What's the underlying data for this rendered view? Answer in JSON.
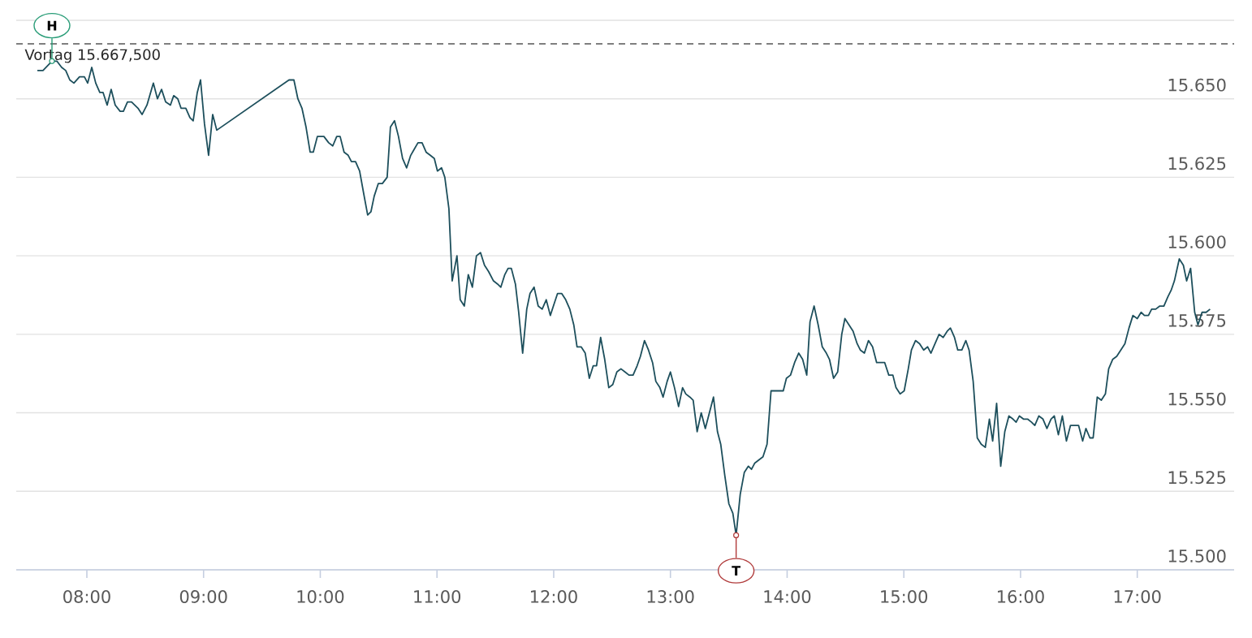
{
  "chart_data": {
    "type": "line",
    "x": [
      7.576,
      7.624,
      7.701,
      7.743,
      7.784,
      7.819,
      7.854,
      7.889,
      7.937,
      7.979,
      8.007,
      8.042,
      8.076,
      8.111,
      8.139,
      8.174,
      8.208,
      8.243,
      8.285,
      8.313,
      8.348,
      8.383,
      8.438,
      8.473,
      8.515,
      8.57,
      8.605,
      8.64,
      8.675,
      8.716,
      8.744,
      8.779,
      8.807,
      8.848,
      8.883,
      8.911,
      8.946,
      8.974,
      9.008,
      9.043,
      9.078,
      9.113,
      9.732,
      9.774,
      9.808,
      9.843,
      9.878,
      9.913,
      9.94,
      9.975,
      10.031,
      10.072,
      10.107,
      10.141,
      10.17,
      10.204,
      10.239,
      10.267,
      10.302,
      10.337,
      10.371,
      10.406,
      10.434,
      10.462,
      10.497,
      10.532,
      10.573,
      10.601,
      10.636,
      10.67,
      10.705,
      10.74,
      10.775,
      10.837,
      10.872,
      10.907,
      10.942,
      10.977,
      11.004,
      11.039,
      11.067,
      11.102,
      11.13,
      11.171,
      11.199,
      11.234,
      11.268,
      11.303,
      11.338,
      11.373,
      11.407,
      11.442,
      11.484,
      11.519,
      11.547,
      11.581,
      11.609,
      11.637,
      11.672,
      11.7,
      11.734,
      11.769,
      11.797,
      11.832,
      11.867,
      11.901,
      11.936,
      11.971,
      12.006,
      12.033,
      12.068,
      12.103,
      12.138,
      12.172,
      12.2,
      12.235,
      12.27,
      12.305,
      12.339,
      12.367,
      12.402,
      12.437,
      12.472,
      12.506,
      12.541,
      12.576,
      12.611,
      12.645,
      12.68,
      12.715,
      12.743,
      12.778,
      12.812,
      12.847,
      12.875,
      12.91,
      12.937,
      12.972,
      13.0,
      13.035,
      13.07,
      13.104,
      13.132,
      13.167,
      13.195,
      13.229,
      13.264,
      13.299,
      13.334,
      13.369,
      13.403,
      13.431,
      13.466,
      13.501,
      13.535,
      13.563,
      13.598,
      13.633,
      13.668,
      13.695,
      13.723,
      13.758,
      13.793,
      13.828,
      13.862,
      13.897,
      13.932,
      13.967,
      13.994,
      14.029,
      14.064,
      14.099,
      14.133,
      14.168,
      14.196,
      14.231,
      14.266,
      14.301,
      14.336,
      14.363,
      14.398,
      14.433,
      14.468,
      14.495,
      14.53,
      14.565,
      14.6,
      14.627,
      14.662,
      14.697,
      14.732,
      14.767,
      14.801,
      14.836,
      14.871,
      14.906,
      14.933,
      14.968,
      15.003,
      15.038,
      15.065,
      15.1,
      15.135,
      15.17,
      15.204,
      15.232,
      15.267,
      15.302,
      15.337,
      15.372,
      15.399,
      15.434,
      15.462,
      15.497,
      15.531,
      15.559,
      15.594,
      15.629,
      15.663,
      15.698,
      15.733,
      15.761,
      15.795,
      15.83,
      15.865,
      15.9,
      15.935,
      15.962,
      15.99,
      16.025,
      16.06,
      16.094,
      16.122,
      16.157,
      16.192,
      16.226,
      16.261,
      16.289,
      16.324,
      16.358,
      16.393,
      16.428,
      16.463,
      16.497,
      16.532,
      16.56,
      16.594,
      16.622,
      16.657,
      16.692,
      16.727,
      16.755,
      16.789,
      16.824,
      16.859,
      16.894,
      16.929,
      16.963,
      17.0,
      17.033,
      17.061,
      17.096,
      17.123,
      17.158,
      17.193,
      17.228,
      17.263,
      17.29,
      17.318,
      17.36,
      17.395,
      17.423,
      17.457,
      17.492,
      17.52,
      17.555,
      17.59,
      17.624
    ],
    "series": [
      {
        "color": "#1d4f5c",
        "values": [
          15.659,
          15.659,
          15.662,
          15.662,
          15.66,
          15.659,
          15.656,
          15.655,
          15.657,
          15.657,
          15.655,
          15.66,
          15.655,
          15.652,
          15.652,
          15.648,
          15.653,
          15.648,
          15.646,
          15.646,
          15.649,
          15.649,
          15.647,
          15.645,
          15.648,
          15.655,
          15.65,
          15.653,
          15.649,
          15.648,
          15.651,
          15.65,
          15.647,
          15.647,
          15.644,
          15.643,
          15.652,
          15.656,
          15.642,
          15.632,
          15.645,
          15.64,
          15.656,
          15.656,
          15.65,
          15.647,
          15.641,
          15.633,
          15.633,
          15.638,
          15.638,
          15.636,
          15.635,
          15.638,
          15.638,
          15.633,
          15.632,
          15.63,
          15.63,
          15.627,
          15.62,
          15.613,
          15.614,
          15.619,
          15.623,
          15.623,
          15.625,
          15.641,
          15.643,
          15.638,
          15.631,
          15.628,
          15.632,
          15.636,
          15.636,
          15.633,
          15.632,
          15.631,
          15.627,
          15.628,
          15.625,
          15.615,
          15.592,
          15.6,
          15.586,
          15.584,
          15.594,
          15.59,
          15.6,
          15.601,
          15.597,
          15.595,
          15.592,
          15.591,
          15.59,
          15.594,
          15.596,
          15.596,
          15.591,
          15.582,
          15.569,
          15.583,
          15.588,
          15.59,
          15.584,
          15.583,
          15.586,
          15.581,
          15.585,
          15.588,
          15.588,
          15.586,
          15.583,
          15.578,
          15.571,
          15.571,
          15.569,
          15.561,
          15.565,
          15.565,
          15.574,
          15.567,
          15.558,
          15.559,
          15.563,
          15.564,
          15.563,
          15.562,
          15.562,
          15.565,
          15.568,
          15.573,
          15.57,
          15.566,
          15.56,
          15.558,
          15.555,
          15.56,
          15.563,
          15.558,
          15.552,
          15.558,
          15.556,
          15.555,
          15.554,
          15.544,
          15.55,
          15.545,
          15.55,
          15.555,
          15.544,
          15.54,
          15.53,
          15.521,
          15.518,
          15.511,
          15.524,
          15.531,
          15.533,
          15.532,
          15.534,
          15.535,
          15.536,
          15.54,
          15.557,
          15.557,
          15.557,
          15.557,
          15.561,
          15.562,
          15.566,
          15.569,
          15.567,
          15.562,
          15.579,
          15.584,
          15.578,
          15.571,
          15.569,
          15.567,
          15.561,
          15.563,
          15.575,
          15.58,
          15.578,
          15.576,
          15.572,
          15.57,
          15.569,
          15.573,
          15.571,
          15.566,
          15.566,
          15.566,
          15.562,
          15.562,
          15.558,
          15.556,
          15.557,
          15.564,
          15.57,
          15.573,
          15.572,
          15.57,
          15.571,
          15.569,
          15.572,
          15.575,
          15.574,
          15.576,
          15.577,
          15.574,
          15.57,
          15.57,
          15.573,
          15.57,
          15.56,
          15.542,
          15.54,
          15.539,
          15.548,
          15.541,
          15.553,
          15.533,
          15.544,
          15.549,
          15.548,
          15.547,
          15.549,
          15.548,
          15.548,
          15.547,
          15.546,
          15.549,
          15.548,
          15.545,
          15.548,
          15.549,
          15.543,
          15.549,
          15.541,
          15.546,
          15.546,
          15.546,
          15.541,
          15.545,
          15.542,
          15.542,
          15.555,
          15.554,
          15.556,
          15.564,
          15.567,
          15.568,
          15.57,
          15.572,
          15.577,
          15.581,
          15.58,
          15.582,
          15.581,
          15.581,
          15.583,
          15.583,
          15.584,
          15.584,
          15.587,
          15.589,
          15.592,
          15.599,
          15.597,
          15.592,
          15.596,
          15.582,
          15.578,
          15.582,
          15.582,
          15.583
        ]
      }
    ],
    "xlim": [
      7.395,
      17.83
    ],
    "xticks": [
      {
        "value": 8,
        "label": "08:00"
      },
      {
        "value": 9,
        "label": "09:00"
      },
      {
        "value": 10,
        "label": "10:00"
      },
      {
        "value": 11,
        "label": "11:00"
      },
      {
        "value": 12,
        "label": "12:00"
      },
      {
        "value": 13,
        "label": "13:00"
      },
      {
        "value": 14,
        "label": "14:00"
      },
      {
        "value": 15,
        "label": "15:00"
      },
      {
        "value": 16,
        "label": "16:00"
      },
      {
        "value": 17,
        "label": "17:00"
      }
    ],
    "ylim": [
      15.5,
      15.675
    ],
    "yticks": [
      {
        "value": 15.5,
        "label": "15.500"
      },
      {
        "value": 15.525,
        "label": "15.525"
      },
      {
        "value": 15.55,
        "label": "15.550"
      },
      {
        "value": 15.575,
        "label": "15.575"
      },
      {
        "value": 15.6,
        "label": "15.600"
      },
      {
        "value": 15.625,
        "label": "15.625"
      },
      {
        "value": 15.65,
        "label": "15.650"
      },
      {
        "value": 15.675,
        "label": null
      }
    ],
    "grid": "y",
    "ref_lines": [
      {
        "axis": "y",
        "value": 15.6675,
        "label": "Vortag 15.667,500",
        "color": "#000000",
        "line_style": "dashed"
      }
    ],
    "annotations": [
      {
        "text": "H",
        "x": 7.701,
        "y": 15.662
      },
      {
        "text": "T",
        "x": 13.563,
        "y": 15.511
      }
    ]
  }
}
